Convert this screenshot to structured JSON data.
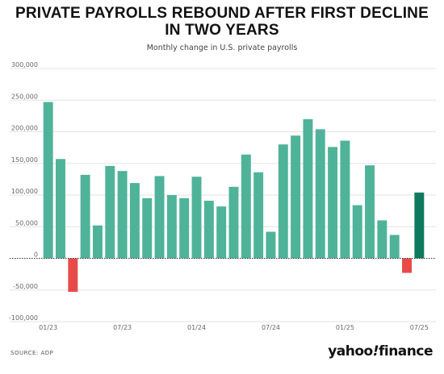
{
  "title": "PRIVATE PAYROLLS REBOUND AFTER FIRST DECLINE IN TWO YEARS",
  "subtitle": "Monthly change in U.S. private payrolls",
  "source": "SOURCE: ADP",
  "brand": "yahoo!finance",
  "colors": {
    "positive": "#4fb399",
    "negative": "#e84a4a",
    "highlight": "#0d7a60",
    "grid": "#e3e3e3",
    "zero_line": "#333333"
  },
  "chart_data": {
    "type": "bar",
    "title": "PRIVATE PAYROLLS REBOUND AFTER FIRST DECLINE IN TWO YEARS",
    "subtitle": "Monthly change in U.S. private payrolls",
    "categories": [
      "01/23",
      "02/23",
      "03/23",
      "04/23",
      "05/23",
      "06/23",
      "07/23",
      "08/23",
      "09/23",
      "10/23",
      "11/23",
      "12/23",
      "01/24",
      "02/24",
      "03/24",
      "04/24",
      "05/24",
      "06/24",
      "07/24",
      "08/24",
      "09/24",
      "10/24",
      "11/24",
      "12/24",
      "01/25",
      "02/25",
      "03/25",
      "04/25",
      "05/25",
      "06/25",
      "07/25"
    ],
    "values": [
      247000,
      157000,
      -53000,
      132000,
      52000,
      146000,
      138000,
      119000,
      95000,
      130000,
      100000,
      95000,
      129000,
      91000,
      82000,
      113000,
      164000,
      136000,
      42000,
      180000,
      194000,
      220000,
      204000,
      176000,
      186000,
      84000,
      147000,
      60000,
      37000,
      -23000,
      104000
    ],
    "highlight_last": true,
    "ylim": [
      -100000,
      300000
    ],
    "yticks": [
      300000,
      250000,
      200000,
      150000,
      100000,
      50000,
      0,
      -50000,
      -100000
    ],
    "ytick_labels": [
      "300,000",
      "250,000",
      "200,000",
      "150,000",
      "100,000",
      "50,000",
      "0",
      "-50,000",
      "-100,000"
    ],
    "xtick_labels": [
      {
        "index": 0,
        "label": "01/23"
      },
      {
        "index": 6,
        "label": "07/23"
      },
      {
        "index": 12,
        "label": "01/24"
      },
      {
        "index": 18,
        "label": "07/24"
      },
      {
        "index": 24,
        "label": "01/25"
      },
      {
        "index": 30,
        "label": "07/25"
      }
    ],
    "grid": true,
    "xlabel": "",
    "ylabel": ""
  }
}
